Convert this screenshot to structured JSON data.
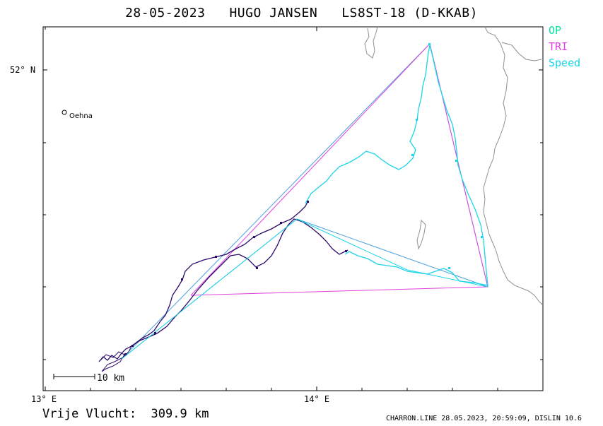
{
  "header": {
    "date": "28-05-2023",
    "pilot": "HUGO JANSEN",
    "aircraft": "LS8ST-18 (D-KKAB)"
  },
  "legend": [
    {
      "label": "OP",
      "color": "#00e5a0"
    },
    {
      "label": "TRI",
      "color": "#e040e0"
    },
    {
      "label": "Speed",
      "color": "#19d5e8"
    }
  ],
  "axes": {
    "lat_label": "52° N",
    "lon_labels": [
      "13° E",
      "14° E"
    ]
  },
  "places": [
    {
      "name": "Oehna"
    }
  ],
  "scale_bar": {
    "label": "10 km"
  },
  "colors": {
    "track": "#2a0a6a",
    "track_speed": "#19d5e8",
    "op": "#4aa0e0",
    "tri": "#e040e0",
    "coast": "#909090",
    "frame": "#000000"
  },
  "footer": {
    "distance_label": "Vrije Vlucht:",
    "distance_value": "309.9 km",
    "credits": "CHARRON.LINE 28.05.2023, 20:59:09, DISLIN 10.6"
  }
}
